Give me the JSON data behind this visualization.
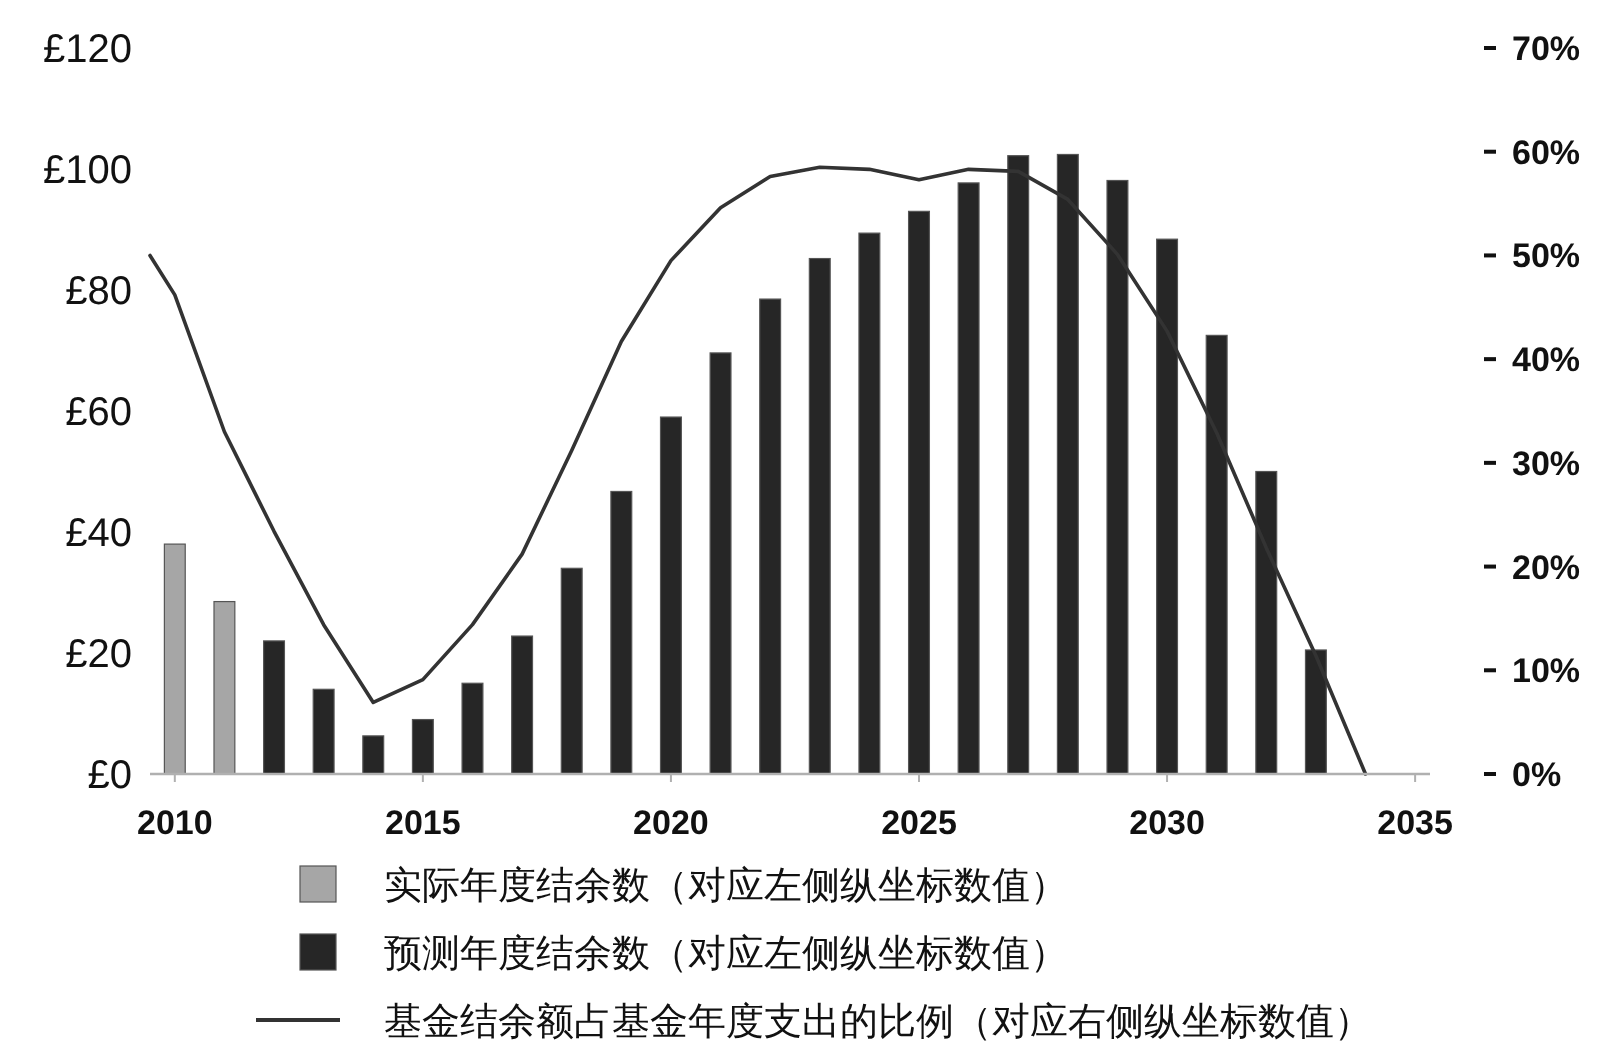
{
  "chart_data": {
    "type": "bar",
    "xlim": [
      2009.5,
      2035.3
    ],
    "xticks": [
      2010,
      2015,
      2020,
      2025,
      2030,
      2035
    ],
    "ylim": [
      0,
      120
    ],
    "yticks": [
      {
        "value": 0,
        "label": "£0"
      },
      {
        "value": 20,
        "label": "£20"
      },
      {
        "value": 40,
        "label": "£40"
      },
      {
        "value": 60,
        "label": "£60"
      },
      {
        "value": 80,
        "label": "£80"
      },
      {
        "value": 100,
        "label": "£100"
      },
      {
        "value": 120,
        "label": "£120"
      }
    ],
    "y2lim": [
      0,
      70
    ],
    "y2ticks": [
      {
        "value": 0,
        "label": "0%"
      },
      {
        "value": 10,
        "label": "10%"
      },
      {
        "value": 20,
        "label": "20%"
      },
      {
        "value": 30,
        "label": "30%"
      },
      {
        "value": 40,
        "label": "40%"
      },
      {
        "value": 50,
        "label": "50%"
      },
      {
        "value": 60,
        "label": "60%"
      },
      {
        "value": 70,
        "label": "70%"
      }
    ],
    "series": [
      {
        "name": "实际年度结余数（对应左侧纵坐标数值）",
        "color": "#a6a6a6",
        "x": [
          2010,
          2011
        ],
        "values": [
          38,
          28.5
        ]
      },
      {
        "name": "预测年度结余数（对应左侧纵坐标数值）",
        "color": "#262626",
        "x": [
          2012,
          2013,
          2014,
          2015,
          2016,
          2017,
          2018,
          2019,
          2020,
          2021,
          2022,
          2023,
          2024,
          2025,
          2026,
          2027,
          2028,
          2029,
          2030,
          2031,
          2032,
          2033
        ],
        "values": [
          22,
          14,
          6.3,
          9,
          15,
          22.8,
          34,
          46.7,
          59,
          69.6,
          78.5,
          85.2,
          89.4,
          93,
          97.7,
          102.2,
          102.4,
          98.1,
          88.4,
          72.5,
          50,
          20.5
        ]
      },
      {
        "name": "基金结余额占基金年度支出的比例（对应右侧纵坐标数值）",
        "type": "line",
        "axis": "y2",
        "color": "#333333",
        "x": [
          2009.5,
          2010,
          2011,
          2012,
          2013,
          2014,
          2015,
          2016,
          2017,
          2018,
          2019,
          2020,
          2021,
          2022,
          2023,
          2024,
          2025,
          2026,
          2027,
          2028,
          2029,
          2030,
          2031,
          2032,
          2033,
          2034
        ],
        "values": [
          50,
          46.2,
          33,
          23.4,
          14.4,
          6.9,
          9.1,
          14.4,
          21.2,
          31.2,
          41.7,
          49.5,
          54.6,
          57.6,
          58.5,
          58.3,
          57.3,
          58.3,
          58.1,
          55.4,
          50.1,
          42.7,
          32.9,
          21.8,
          11.4,
          0
        ]
      }
    ],
    "legend": "bottom",
    "grid": false,
    "marker": "none",
    "line_style": "solid"
  }
}
